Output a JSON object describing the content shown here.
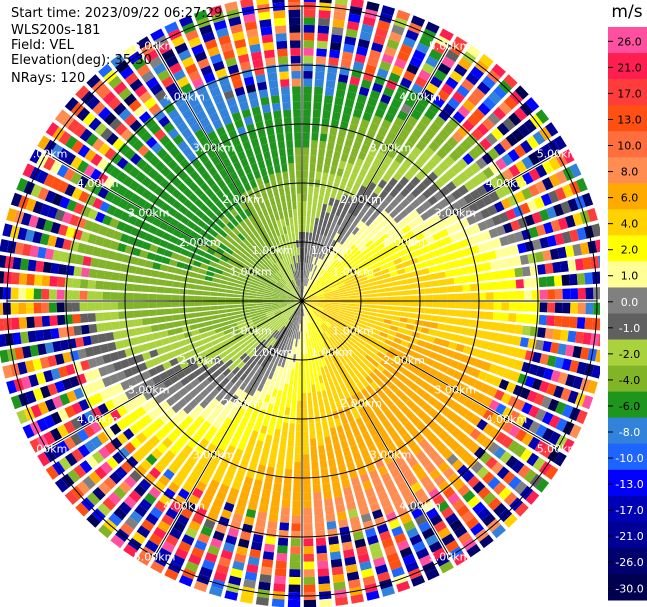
{
  "header": {
    "start_time": "Start time: 2023/09/22 06:27:29",
    "instrument": "WLS200s-181",
    "field": "Field: VEL",
    "elevation": "Elevation(deg): 35.30",
    "nrays": "NRays: 120"
  },
  "chart_data": {
    "type": "ppi-polar-heatmap",
    "field": "VEL",
    "units": "m/s",
    "nrays": 120,
    "elevation_deg": 35.3,
    "range_rings_km": [
      1.0,
      2.0,
      3.0,
      4.0,
      5.0
    ],
    "range_ring_labels": [
      "1.00km",
      "2.00km",
      "3.00km",
      "4.00km",
      "5.00km"
    ],
    "max_range_km": 5.2,
    "spoke_angles_deg": [
      0,
      30,
      60,
      90,
      120,
      150,
      180,
      210,
      240,
      270,
      300,
      330
    ],
    "colorbar": {
      "title": "m/s",
      "tick_labels": [
        "26.0",
        "21.0",
        "17.0",
        "13.0",
        "10.0",
        "8.0",
        "6.0",
        "4.0",
        "2.0",
        "1.0",
        "0.0",
        "-1.0",
        "-2.0",
        "-4.0",
        "-6.0",
        "-8.0",
        "-10.0",
        "-13.0",
        "-17.0",
        "-21.0",
        "-26.0",
        "-30.0"
      ],
      "colors": [
        "#ff50a0",
        "#ff1e50",
        "#ff3c3c",
        "#ff5014",
        "#ff6e3c",
        "#ff8c50",
        "#ffaa00",
        "#ffd200",
        "#ffff00",
        "#ffff96",
        "#808080",
        "#606060",
        "#aad23c",
        "#82b428",
        "#1e961e",
        "#3282dc",
        "#1e64ff",
        "#0000ff",
        "#0000b4",
        "#000096",
        "#00006e",
        "#000050"
      ]
    },
    "velocity_pattern": {
      "description_values": "azimuthal sinusoid; positive (receding) toward east/southeast, negative (approaching) toward west/northwest, amplitude increasing with range, noise beyond ~4 km",
      "amplitude_near_ms": 3.0,
      "amplitude_far_ms": 8.0,
      "noise_onset_km": 4.0
    }
  }
}
